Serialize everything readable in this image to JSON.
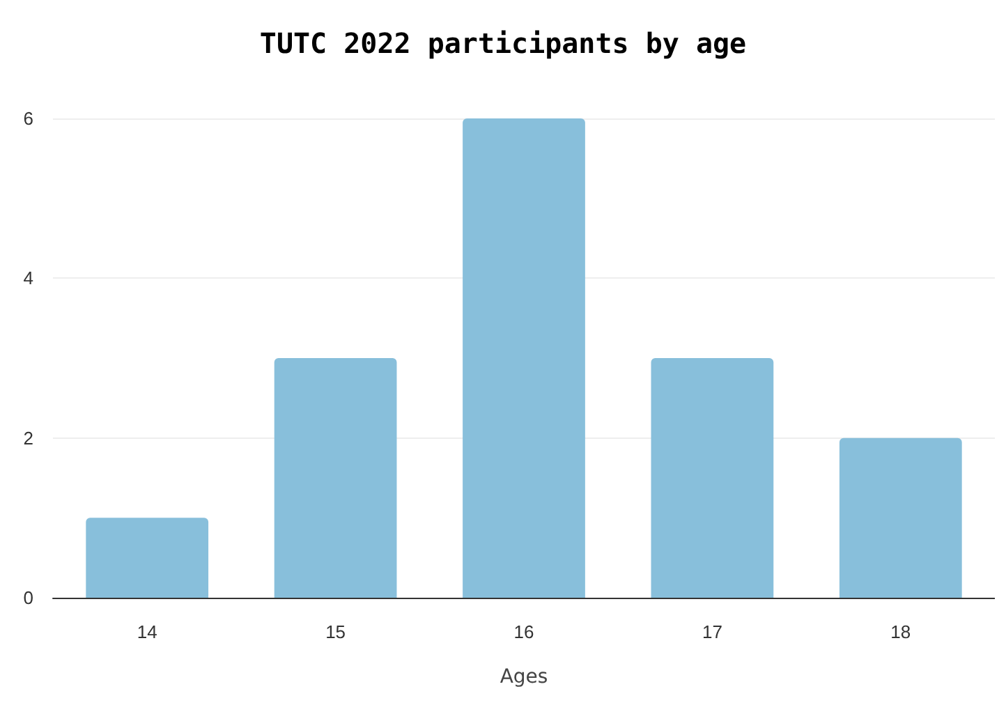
{
  "chart_data": {
    "type": "bar",
    "title": "TUTC 2022 participants by age",
    "xlabel": "Ages",
    "categories": [
      "14",
      "15",
      "16",
      "17",
      "18"
    ],
    "values": [
      1,
      3,
      6,
      3,
      2
    ],
    "color": "#88bfdb",
    "ylim": [
      0,
      6
    ],
    "yticks": [
      0,
      2,
      4,
      6
    ],
    "grid": "y"
  }
}
